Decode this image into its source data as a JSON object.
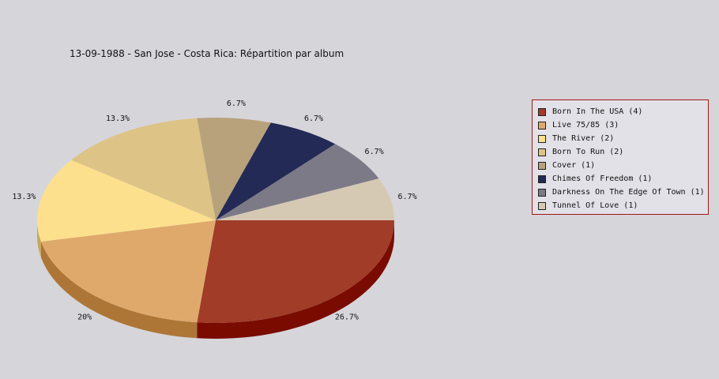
{
  "chart_data": {
    "type": "pie",
    "title": "13-09-1988 - San Jose - Costa Rica:  Répartition par album",
    "slices": [
      {
        "label": "Born In The USA (4)",
        "value": 4,
        "pct_label": "26.7%",
        "color": "#a03c28",
        "side": "#7a0b00"
      },
      {
        "label": "Live 75/85 (3)",
        "value": 3,
        "pct_label": "20%",
        "color": "#e0a96c",
        "side": "#ad7636"
      },
      {
        "label": "The River (2)",
        "value": 2,
        "pct_label": "13.3%",
        "color": "#fde08d",
        "side": "#c6a858"
      },
      {
        "label": "Born To Run (2)",
        "value": 2,
        "pct_label": "13.3%",
        "color": "#ddc486",
        "side": "#a89358"
      },
      {
        "label": "Cover (1)",
        "value": 1,
        "pct_label": "6.7%",
        "color": "#b8a27c",
        "side": "#87754f"
      },
      {
        "label": "Chimes Of Freedom (1)",
        "value": 1,
        "pct_label": "6.7%",
        "color": "#232a55",
        "side": "#12163a"
      },
      {
        "label": "Darkness On The Edge Of Town (1)",
        "value": 1,
        "pct_label": "6.7%",
        "color": "#7c7a86",
        "side": "#55535e"
      },
      {
        "label": "Tunnel Of Love (1)",
        "value": 1,
        "pct_label": "6.7%",
        "color": "#d5c9b3",
        "side": "#a89c86"
      }
    ],
    "legend_position": "right"
  }
}
